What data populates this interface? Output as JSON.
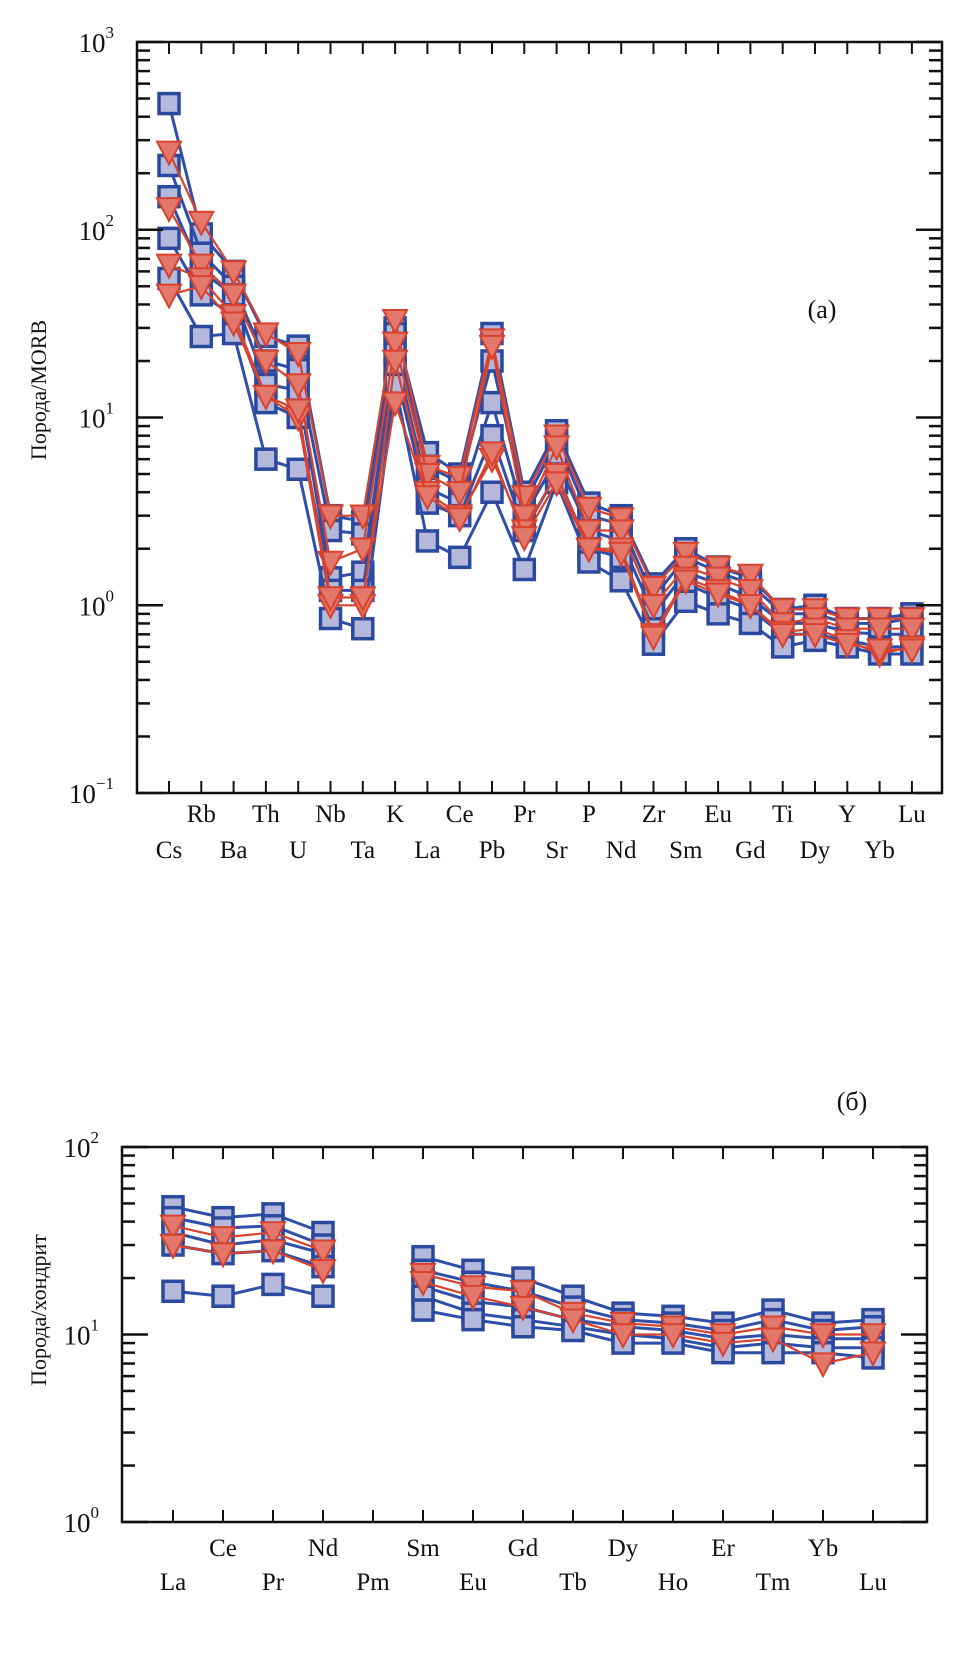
{
  "chart_data": [
    {
      "id": "a",
      "type": "line",
      "title": "",
      "panel_label": "(a)",
      "ylabel": "Порода/MORB",
      "xlabel": "",
      "yscale": "log",
      "ylim": [
        0.1,
        1000
      ],
      "ytick_labels": [
        {
          "value": 1000,
          "base": "10",
          "exp": "3"
        },
        {
          "value": 100,
          "base": "10",
          "exp": "2"
        },
        {
          "value": 10,
          "base": "10",
          "exp": "1"
        },
        {
          "value": 1,
          "base": "10",
          "exp": "0"
        },
        {
          "value": 0.1,
          "base": "10",
          "exp": "−1"
        }
      ],
      "categories": [
        "Cs",
        "Rb",
        "Ba",
        "Th",
        "U",
        "Nb",
        "Ta",
        "K",
        "La",
        "Ce",
        "Pb",
        "Pr",
        "Sr",
        "P",
        "Nd",
        "Zr",
        "Sm",
        "Eu",
        "Gd",
        "Ti",
        "Dy",
        "Y",
        "Yb",
        "Lu"
      ],
      "series": [
        {
          "name": "square-1",
          "marker": "square",
          "values": [
            470,
            95,
            60,
            27,
            24,
            3.0,
            2.8,
            30,
            6.5,
            5.0,
            28,
            4.0,
            8.5,
            3.5,
            3.0,
            1.3,
            2.0,
            1.6,
            1.4,
            0.95,
            1.0,
            0.85,
            0.85,
            0.9
          ]
        },
        {
          "name": "square-2",
          "marker": "square",
          "values": [
            220,
            75,
            50,
            20,
            18,
            2.5,
            2.4,
            28,
            5.5,
            4.5,
            20,
            3.5,
            7.5,
            3.0,
            2.7,
            1.1,
            1.8,
            1.5,
            1.3,
            0.9,
            0.9,
            0.8,
            0.8,
            0.85
          ]
        },
        {
          "name": "square-3",
          "marker": "square",
          "values": [
            150,
            60,
            45,
            15,
            14,
            1.4,
            1.5,
            22,
            4.2,
            3.5,
            12,
            3.0,
            6.0,
            2.5,
            2.2,
            0.9,
            1.5,
            1.3,
            1.1,
            0.8,
            0.8,
            0.72,
            0.7,
            0.7
          ]
        },
        {
          "name": "square-4",
          "marker": "square",
          "values": [
            90,
            45,
            35,
            12,
            10,
            1.2,
            1.2,
            18,
            3.5,
            3.0,
            8,
            2.5,
            5.0,
            2.0,
            1.8,
            0.75,
            1.3,
            1.1,
            0.95,
            0.7,
            0.7,
            0.65,
            0.6,
            0.6
          ]
        },
        {
          "name": "square-5",
          "marker": "square",
          "values": [
            55,
            27,
            28,
            6.0,
            5.3,
            0.85,
            0.75,
            15,
            2.2,
            1.8,
            4.0,
            1.55,
            4.5,
            1.7,
            1.35,
            0.62,
            1.05,
            0.9,
            0.8,
            0.6,
            0.65,
            0.6,
            0.55,
            0.55
          ]
        },
        {
          "name": "triangle-1",
          "marker": "triangle",
          "values": [
            260,
            110,
            60,
            28,
            22,
            3.0,
            3.0,
            33,
            5.5,
            4.8,
            26,
            3.8,
            8.0,
            3.3,
            2.9,
            1.25,
            1.9,
            1.6,
            1.45,
            0.95,
            0.95,
            0.85,
            0.85,
            0.85
          ]
        },
        {
          "name": "triangle-2",
          "marker": "triangle",
          "values": [
            130,
            65,
            45,
            20,
            15,
            1.7,
            2.0,
            25,
            5.0,
            4.0,
            24,
            3.0,
            7.0,
            2.5,
            2.5,
            1.0,
            1.6,
            1.4,
            1.2,
            0.8,
            0.85,
            0.75,
            0.75,
            0.75
          ]
        },
        {
          "name": "triangle-3",
          "marker": "triangle",
          "values": [
            65,
            55,
            35,
            13,
            10,
            1.0,
            1.0,
            20,
            4.0,
            3.0,
            6.0,
            2.5,
            5.0,
            2.0,
            2.0,
            0.7,
            1.4,
            1.2,
            1.0,
            0.72,
            0.75,
            0.65,
            0.55,
            0.6
          ]
        },
        {
          "name": "triangle-4",
          "marker": "triangle",
          "values": [
            45,
            50,
            32,
            13,
            11,
            1.1,
            1.1,
            12,
            3.8,
            2.9,
            6.5,
            2.3,
            4.5,
            2.0,
            1.9,
            0.68,
            1.35,
            1.15,
            1.0,
            0.7,
            0.7,
            0.62,
            0.58,
            0.58
          ]
        }
      ]
    },
    {
      "id": "b",
      "type": "line",
      "title": "",
      "panel_label": "(б)",
      "ylabel": "Порода/хондрит",
      "xlabel": "",
      "yscale": "log",
      "ylim": [
        1,
        100
      ],
      "ytick_labels": [
        {
          "value": 100,
          "base": "10",
          "exp": "2"
        },
        {
          "value": 10,
          "base": "10",
          "exp": "1"
        },
        {
          "value": 1,
          "base": "10",
          "exp": "0"
        }
      ],
      "categories": [
        "La",
        "Ce",
        "Pr",
        "Nd",
        "Pm",
        "Sm",
        "Eu",
        "Gd",
        "Tb",
        "Dy",
        "Ho",
        "Er",
        "Tm",
        "Yb",
        "Lu"
      ],
      "series": [
        {
          "name": "square-1",
          "marker": "square",
          "values": [
            48,
            42,
            44,
            35,
            null,
            26,
            22,
            20,
            16,
            13,
            12.5,
            11.5,
            13.5,
            11.5,
            12
          ]
        },
        {
          "name": "square-2",
          "marker": "square",
          "values": [
            42,
            37,
            38,
            30,
            null,
            22,
            19,
            17,
            14,
            12,
            11.5,
            10.5,
            12,
            10.5,
            11
          ]
        },
        {
          "name": "square-3",
          "marker": "square",
          "values": [
            35,
            30,
            32,
            27,
            null,
            18,
            15,
            14,
            12,
            11,
            10.5,
            9.5,
            10,
            9.5,
            9.5
          ]
        },
        {
          "name": "square-4",
          "marker": "square",
          "values": [
            30,
            27,
            28,
            23,
            null,
            16,
            13,
            12,
            11,
            10,
            9.5,
            8.5,
            9,
            8.5,
            8.5
          ]
        },
        {
          "name": "square-5",
          "marker": "square",
          "values": [
            17,
            16,
            18.5,
            16,
            null,
            13.5,
            12,
            11,
            10.5,
            9,
            9,
            8,
            8,
            8,
            7.5
          ]
        },
        {
          "name": "triangle-1",
          "marker": "triangle",
          "values": [
            38,
            33,
            35,
            28,
            null,
            21,
            18,
            17,
            13,
            11.5,
            11,
            10,
            11,
            10,
            10
          ]
        },
        {
          "name": "triangle-2",
          "marker": "triangle",
          "values": [
            30,
            27,
            28,
            22,
            null,
            19,
            16,
            14,
            12,
            10,
            10,
            9,
            9.5,
            7,
            8
          ]
        }
      ]
    }
  ],
  "colors": {
    "square_fill": "#b4b9dc",
    "square_stroke": "#2b4a9f",
    "square_line": "#2f4fa8",
    "triangle_fill": "#e2776b",
    "triangle_stroke": "#d8432f",
    "triangle_line": "#d8432f",
    "axis": "#111111"
  }
}
